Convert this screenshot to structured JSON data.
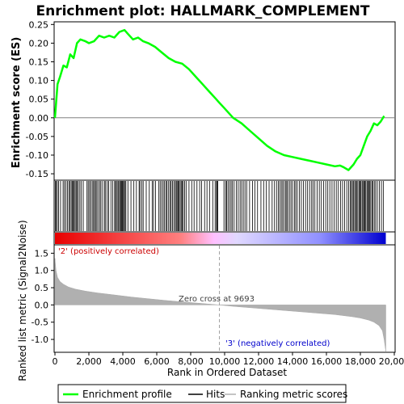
{
  "chart_data": {
    "type": "line",
    "title": "Enrichment plot: HALLMARK_COMPLEMENT",
    "top_panel": {
      "ylabel": "Enrichment score (ES)",
      "ylim": [
        -0.165,
        0.255
      ],
      "yticks": [
        0.25,
        0.2,
        0.15,
        0.1,
        0.05,
        0.0,
        -0.05,
        -0.1,
        -0.15
      ],
      "ytick_labels": [
        "0.25",
        "0.20",
        "0.15",
        "0.10",
        "0.05",
        "0.00",
        "-0.05",
        "-0.10",
        "-0.15"
      ],
      "series": [
        {
          "name": "Enrichment profile",
          "color": "#00ff00",
          "x": [
            0,
            150,
            300,
            500,
            700,
            900,
            1100,
            1300,
            1500,
            1800,
            2000,
            2300,
            2600,
            2900,
            3200,
            3500,
            3800,
            4100,
            4300,
            4600,
            4900,
            5200,
            5500,
            5900,
            6300,
            6700,
            7100,
            7500,
            7900,
            8300,
            8700,
            9100,
            9500,
            9693,
            10000,
            10500,
            11000,
            11500,
            12000,
            12500,
            13000,
            13500,
            14000,
            14500,
            15000,
            15500,
            16000,
            16500,
            16800,
            17000,
            17300,
            17600,
            17800,
            18000,
            18200,
            18400,
            18600,
            18800,
            19000,
            19200,
            19400
          ],
          "y": [
            0.0,
            0.09,
            0.11,
            0.14,
            0.135,
            0.17,
            0.16,
            0.2,
            0.21,
            0.205,
            0.2,
            0.205,
            0.22,
            0.215,
            0.22,
            0.215,
            0.23,
            0.235,
            0.225,
            0.21,
            0.215,
            0.205,
            0.2,
            0.19,
            0.175,
            0.16,
            0.15,
            0.145,
            0.13,
            0.11,
            0.09,
            0.07,
            0.05,
            0.04,
            0.025,
            0.0,
            -0.015,
            -0.035,
            -0.055,
            -0.075,
            -0.09,
            -0.1,
            -0.105,
            -0.11,
            -0.115,
            -0.12,
            -0.125,
            -0.13,
            -0.128,
            -0.132,
            -0.14,
            -0.125,
            -0.11,
            -0.1,
            -0.075,
            -0.05,
            -0.035,
            -0.015,
            -0.02,
            -0.01,
            0.005
          ]
        }
      ]
    },
    "hits": {
      "name": "Hits",
      "color": "#000000",
      "positions": [
        30,
        70,
        140,
        210,
        330,
        480,
        560,
        650,
        740,
        820,
        890,
        960,
        1030,
        1080,
        1130,
        1190,
        1250,
        1310,
        1380,
        1470,
        1560,
        1670,
        1890,
        1960,
        2040,
        2110,
        2200,
        2280,
        2330,
        2410,
        2470,
        2540,
        2640,
        2710,
        2810,
        2920,
        2990,
        3090,
        3170,
        3300,
        3410,
        3520,
        3570,
        3630,
        3710,
        3760,
        3820,
        3880,
        3930,
        3970,
        4010,
        4060,
        4130,
        4180,
        4300,
        4480,
        4650,
        4800,
        4960,
        5010,
        5120,
        5200,
        5380,
        5560,
        5730,
        5810,
        5930,
        6110,
        6200,
        6290,
        6380,
        6460,
        6550,
        6610,
        6700,
        6780,
        6850,
        6930,
        7010,
        7090,
        7150,
        7200,
        7260,
        7310,
        7380,
        7440,
        7500,
        7560,
        7640,
        7730,
        7900,
        8060,
        8200,
        8370,
        8530,
        8640,
        8820,
        8960,
        9110,
        9300,
        9440,
        9520,
        9560,
        9600,
        9960,
        10060,
        10120,
        10200,
        10290,
        10380,
        10460,
        10560,
        10690,
        10800,
        10910,
        11000,
        11100,
        11200,
        11300,
        11470,
        11640,
        11780,
        11940,
        12140,
        12300,
        12460,
        12620,
        12800,
        12940,
        13060,
        13170,
        13250,
        13340,
        13420,
        13500,
        13590,
        13660,
        13720,
        13820,
        13910,
        14000,
        14110,
        14190,
        14280,
        14400,
        14520,
        14640,
        14770,
        14890,
        15010,
        15130,
        15220,
        15320,
        15450,
        15580,
        15700,
        15830,
        15960,
        16080,
        16200,
        16330,
        16460,
        16580,
        16700,
        16830,
        16950,
        17070,
        17200,
        17310,
        17400,
        17470,
        17530,
        17600,
        17670,
        17720,
        17790,
        17850,
        17920,
        17970,
        18030,
        18100,
        18150,
        18210,
        18260,
        18320,
        18390,
        18440,
        18490,
        18540,
        18610,
        18680,
        18740,
        18820,
        18900,
        19000,
        19120,
        19240,
        19350
      ]
    },
    "rank_metric": {
      "name": "Ranking metric scores",
      "color": "#b0b0b0",
      "ylabel": "Ranked list metric (Signal2Noise)",
      "ylim": [
        -1.35,
        1.72
      ],
      "yticks": [
        1.5,
        1.0,
        0.5,
        0.0,
        -0.5,
        -1.0
      ],
      "ytick_labels": [
        "1.5",
        "1.0",
        "0.5",
        "0.0",
        "-0.5",
        "-1.0"
      ],
      "x": [
        0,
        60,
        150,
        300,
        500,
        800,
        1200,
        1800,
        2500,
        3500,
        4500,
        5500,
        6500,
        7500,
        8500,
        9693,
        10500,
        11500,
        12500,
        13500,
        14500,
        15500,
        16500,
        17000,
        17500,
        18000,
        18500,
        18800,
        19100,
        19300,
        19400,
        19500
      ],
      "y": [
        1.35,
        1.0,
        0.8,
        0.68,
        0.6,
        0.52,
        0.46,
        0.4,
        0.35,
        0.29,
        0.23,
        0.18,
        0.13,
        0.09,
        0.05,
        0.0,
        -0.04,
        -0.08,
        -0.12,
        -0.16,
        -0.2,
        -0.24,
        -0.28,
        -0.31,
        -0.34,
        -0.38,
        -0.44,
        -0.5,
        -0.6,
        -0.75,
        -1.0,
        -1.35
      ]
    },
    "xaxis": {
      "label": "Rank in Ordered Dataset",
      "xlim": [
        0,
        20000
      ],
      "ticks": [
        0,
        2000,
        4000,
        6000,
        8000,
        10000,
        12000,
        14000,
        16000,
        18000,
        20000
      ],
      "tick_labels": [
        "0",
        "2,000",
        "4,000",
        "6,000",
        "8,000",
        "10,000",
        "12,000",
        "14,000",
        "16,000",
        "18,000",
        "20,000"
      ],
      "data_end": 19500
    },
    "zero_cross": {
      "position": 9693,
      "label": "Zero cross at 9693"
    },
    "annotations": {
      "positive": "'2' (positively correlated)",
      "negative": "'3' (negatively correlated)",
      "positive_color": "#cc0000",
      "negative_color": "#0000cc"
    },
    "legend": {
      "placement": "bottom",
      "entries": [
        {
          "label": "Enrichment profile",
          "color": "#00ff00",
          "kind": "line"
        },
        {
          "label": "Hits",
          "color": "#000000",
          "kind": "line"
        },
        {
          "label": "Ranking metric scores",
          "color": "#b0b0b0",
          "kind": "line"
        }
      ]
    },
    "colorbar": {
      "stops": [
        "#e80000",
        "#ff8080",
        "#ffc0ff",
        "#e0d8ff",
        "#9090ff",
        "#0000d0"
      ]
    }
  }
}
